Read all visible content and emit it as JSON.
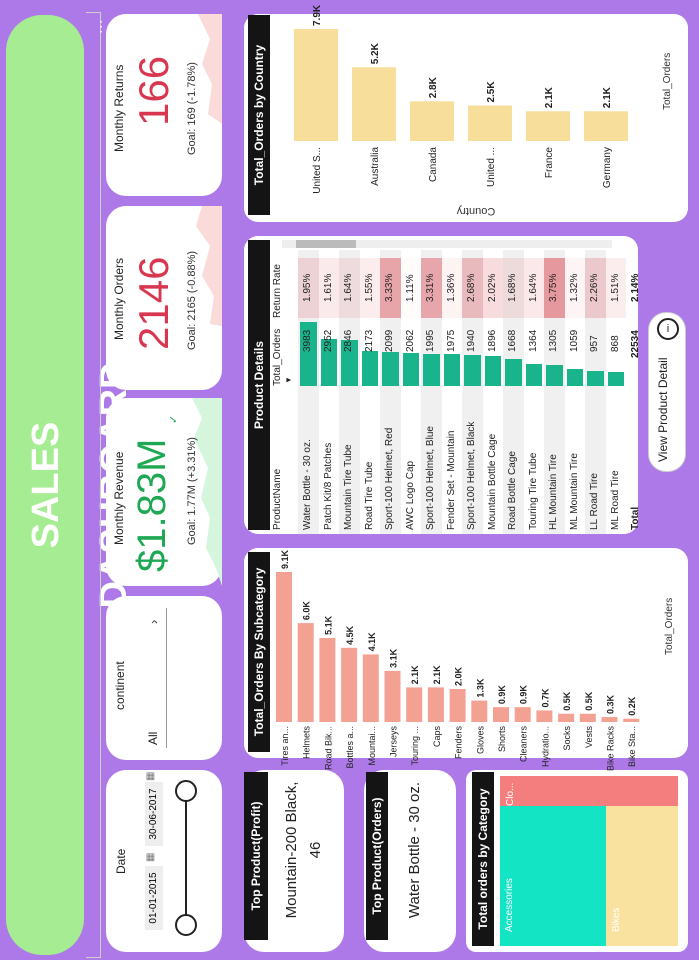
{
  "dashboard": {
    "title": "SALES DASHBOARD"
  },
  "colors": {
    "banner": "#a6ec92",
    "background": "#ad79e8",
    "green_kpi": "#1ea854",
    "red_kpi": "#d9374f",
    "teal": "#19b38c",
    "country_bar": "#f7df9b",
    "subcat_bar": "#f3a193"
  },
  "date_filter": {
    "label": "Date",
    "start": "01-01-2015",
    "end": "30-06-2017"
  },
  "continent_filter": {
    "label": "continent",
    "value": "All"
  },
  "kpis": {
    "revenue": {
      "title": "Monthly Revenue",
      "value": "$1.83M",
      "goal": "Goal: 1.77M (+3.31%)",
      "trend": "up"
    },
    "orders": {
      "title": "Monthly Orders",
      "value": "2146",
      "goal": "Goal: 2165 (-0.88%)",
      "trend": "down"
    },
    "returns": {
      "title": "Monthly Returns",
      "value": "166",
      "goal": "Goal: 169 (-1.78%)",
      "trend": "down"
    }
  },
  "top_profit": {
    "title": "Top Product(Profit)",
    "line1": "Mountain-200 Black,",
    "line2": "46"
  },
  "top_orders": {
    "title": "Top Product(Orders)",
    "value": "Water Bottle - 30 oz."
  },
  "category_treemap": {
    "title": "Total orders by Category",
    "items": [
      {
        "name": "Accessories",
        "color": "#13e4c4"
      },
      {
        "name": "Bikes",
        "color": "#f9e1a0"
      },
      {
        "name": "Clo...",
        "color": "#f47e7e"
      }
    ]
  },
  "subcategory_chart": {
    "title": "Total_Orders By Subcategory",
    "legend": "Total_Orders",
    "chart_data": {
      "type": "bar",
      "categories": [
        "Tires an...",
        "Helmets",
        "Road Bik...",
        "Bottles a...",
        "Mountai...",
        "Jerseys",
        "Touring ...",
        "Caps",
        "Fenders",
        "Gloves",
        "Shorts",
        "Cleaners",
        "Hydratio...",
        "Socks",
        "Vests",
        "Bike Racks",
        "Bike Sta..."
      ],
      "values": [
        9.1,
        6.0,
        5.1,
        4.5,
        4.1,
        3.1,
        2.1,
        2.1,
        2.0,
        1.3,
        0.9,
        0.9,
        0.7,
        0.5,
        0.5,
        0.3,
        0.2
      ],
      "labels": [
        "9.1K",
        "6.0K",
        "5.1K",
        "4.5K",
        "4.1K",
        "3.1K",
        "2.1K",
        "2.1K",
        "2.0K",
        "1.3K",
        "0.9K",
        "0.9K",
        "0.7K",
        "0.5K",
        "0.5K",
        "0.3K",
        "0.2K"
      ]
    }
  },
  "country_chart": {
    "title": "Total_Orders by Country",
    "legend": "Total_Orders",
    "xlabel": "Country",
    "chart_data": {
      "type": "bar",
      "categories": [
        "United S...",
        "Australia",
        "Canada",
        "United ...",
        "France",
        "Germany"
      ],
      "values": [
        7.9,
        5.2,
        2.8,
        2.5,
        2.1,
        2.1
      ],
      "labels": [
        "7.9K",
        "5.2K",
        "2.8K",
        "2.5K",
        "2.1K",
        "2.1K"
      ]
    }
  },
  "product_details": {
    "title": "Product Details",
    "columns": [
      "ProductName",
      "Total_Orders",
      "Return Rate"
    ],
    "rows": [
      {
        "name": "Water Bottle - 30 oz.",
        "orders": 3983,
        "orders_text": "3983",
        "rate": "1.95%"
      },
      {
        "name": "Patch Kit/8 Patches",
        "orders": 2952,
        "orders_text": "2952",
        "rate": "1.61%"
      },
      {
        "name": "Mountain Tire Tube",
        "orders": 2846,
        "orders_text": "2846",
        "rate": "1.64%"
      },
      {
        "name": "Road Tire Tube",
        "orders": 2173,
        "orders_text": "2173",
        "rate": "1.55%"
      },
      {
        "name": "Sport-100 Helmet, Red",
        "orders": 2099,
        "orders_text": "2099",
        "rate": "3.33%"
      },
      {
        "name": "AWC Logo Cap",
        "orders": 2062,
        "orders_text": "2062",
        "rate": "1.11%"
      },
      {
        "name": "Sport-100 Helmet, Blue",
        "orders": 1995,
        "orders_text": "1995",
        "rate": "3.31%"
      },
      {
        "name": "Fender Set - Mountain",
        "orders": 1975,
        "orders_text": "1975",
        "rate": "1.36%"
      },
      {
        "name": "Sport-100 Helmet, Black",
        "orders": 1940,
        "orders_text": "1940",
        "rate": "2.68%"
      },
      {
        "name": "Mountain Bottle Cage",
        "orders": 1896,
        "orders_text": "1896",
        "rate": "2.02%"
      },
      {
        "name": "Road Bottle Cage",
        "orders": 1668,
        "orders_text": "1668",
        "rate": "1.68%"
      },
      {
        "name": "Touring Tire Tube",
        "orders": 1364,
        "orders_text": "1364",
        "rate": "1.64%"
      },
      {
        "name": "HL Mountain Tire",
        "orders": 1305,
        "orders_text": "1305",
        "rate": "3.75%"
      },
      {
        "name": "ML Mountain Tire",
        "orders": 1059,
        "orders_text": "1059",
        "rate": "1.32%"
      },
      {
        "name": "LL Road Tire",
        "orders": 957,
        "orders_text": "957",
        "rate": "2.26%"
      },
      {
        "name": "ML Road Tire",
        "orders": 868,
        "orders_text": "868",
        "rate": "1.51%"
      }
    ],
    "total": {
      "label": "Total",
      "orders": "22534",
      "rate": "2.14%"
    }
  },
  "view_detail": {
    "label": "View Product Detail"
  }
}
